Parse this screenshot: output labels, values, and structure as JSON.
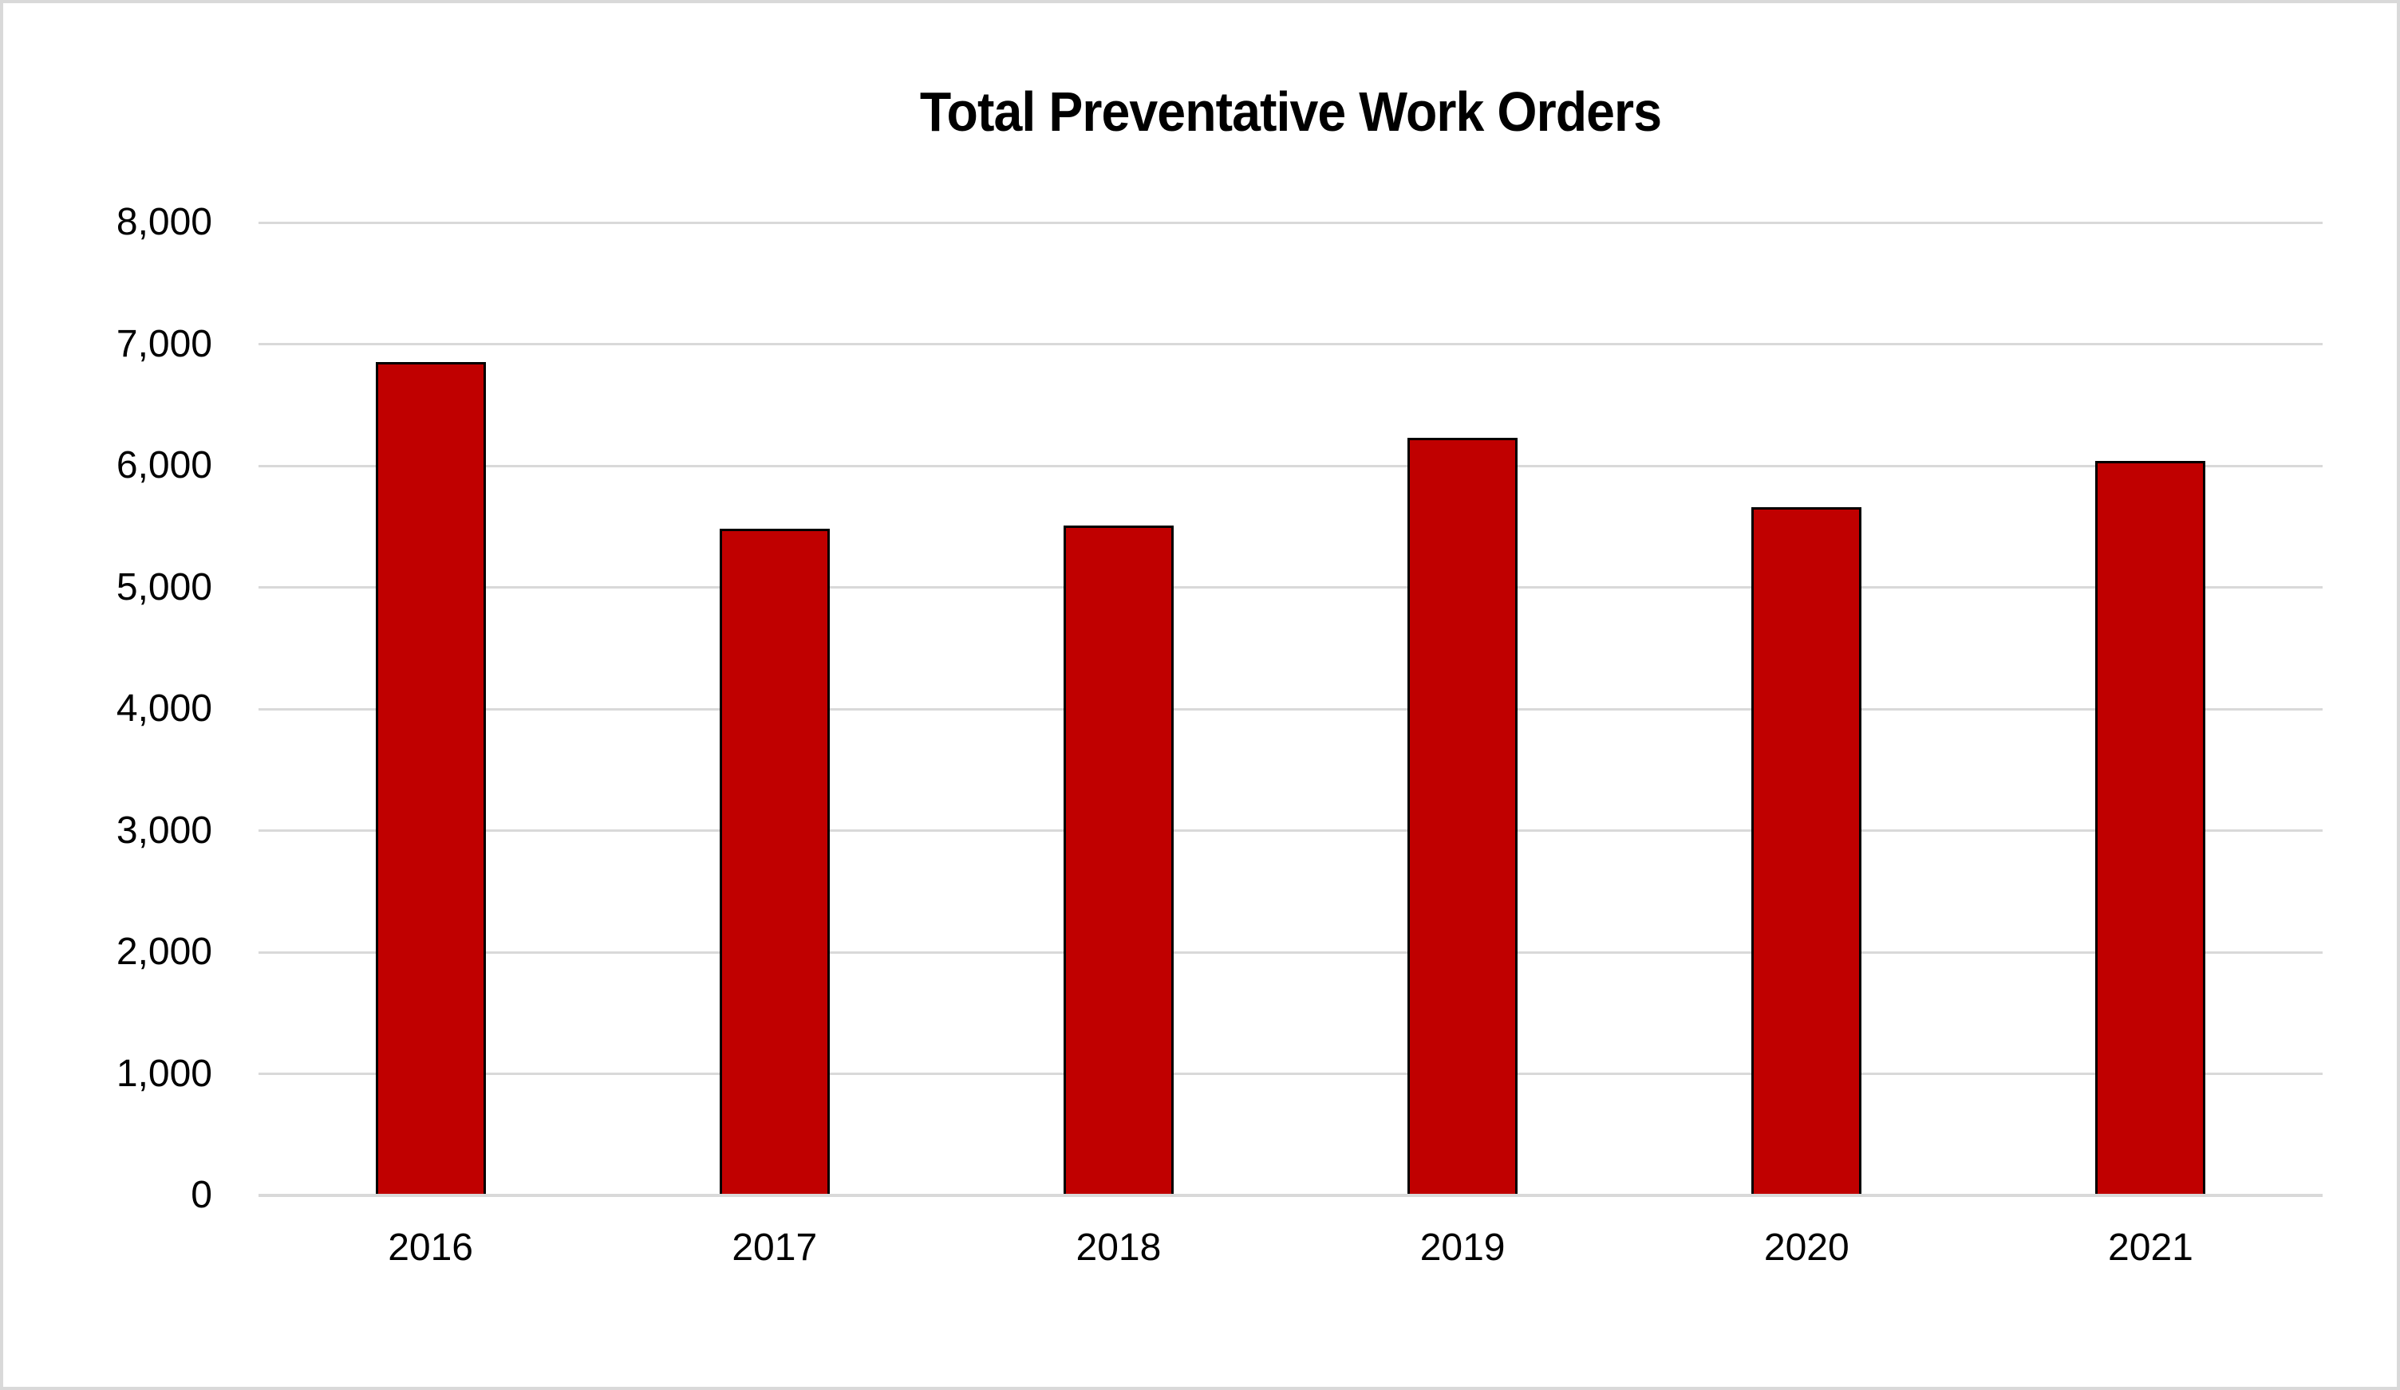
{
  "title": "Total Preventative Work Orders",
  "chart_data": {
    "type": "bar",
    "title": "Total Preventative Work Orders",
    "categories": [
      "2016",
      "2017",
      "2018",
      "2019",
      "2020",
      "2021"
    ],
    "values": [
      6850,
      5480,
      5510,
      6230,
      5660,
      6040
    ],
    "xlabel": "",
    "ylabel": "",
    "ylim": [
      0,
      8000
    ],
    "ytick_interval": 1000,
    "yticks": [
      0,
      1000,
      2000,
      3000,
      4000,
      5000,
      6000,
      7000,
      8000
    ],
    "ytick_labels": [
      "0",
      "1,000",
      "2,000",
      "3,000",
      "4,000",
      "5,000",
      "6,000",
      "7,000",
      "8,000"
    ],
    "grid": true,
    "legend": false,
    "colors": {
      "bar_fill": "#c00000",
      "bar_border": "#000000",
      "gridline": "#d9d9d9",
      "axis_line": "#d9d9d9",
      "canvas_border": "#d9d9d9",
      "background": "#ffffff",
      "text": "#000000"
    }
  }
}
